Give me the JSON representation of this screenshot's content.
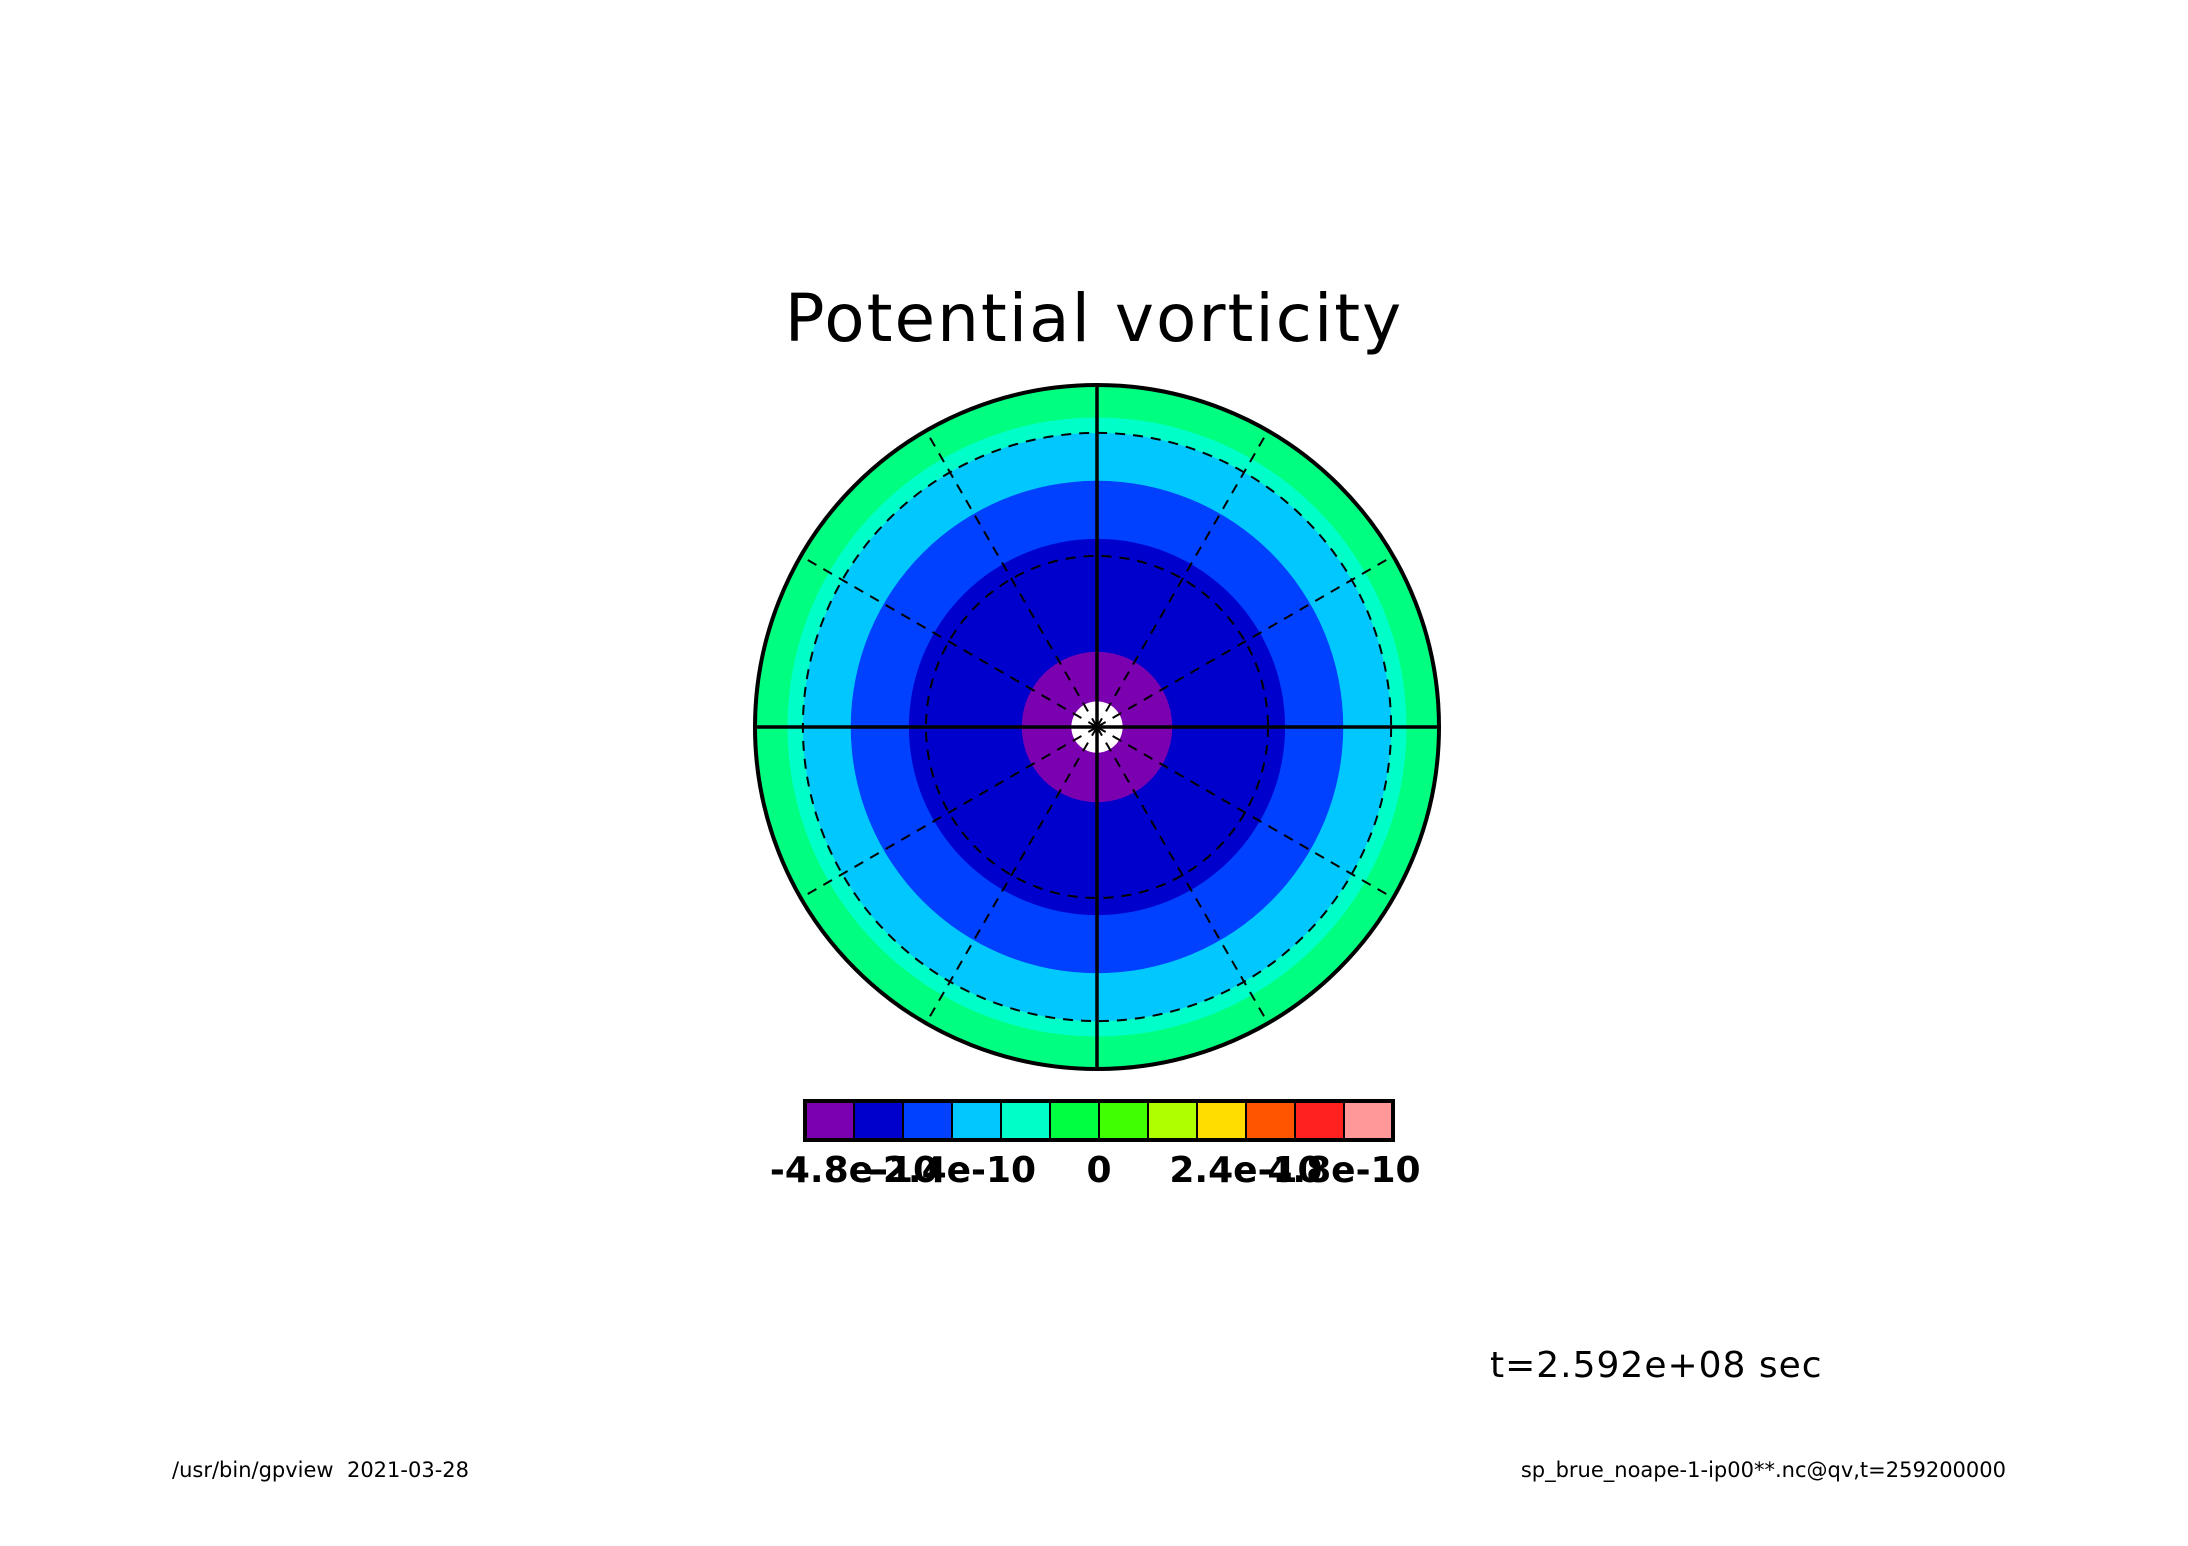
{
  "chart_data": {
    "type": "heatmap",
    "projection": "polar",
    "title": "Potential vorticity",
    "time_label": "t=2.592e+08 sec",
    "footer_left": "/usr/bin/gpview  2021-03-28",
    "footer_right": "sp_brue_noape-1-ip00**.nc@qv,t=259200000",
    "colorbar": {
      "colors": [
        "#7a00b0",
        "#0000cc",
        "#0040ff",
        "#00c8ff",
        "#00ffc8",
        "#00ff40",
        "#40ff00",
        "#b0ff00",
        "#ffdd00",
        "#ff5500",
        "#ff2020",
        "#ff9999"
      ],
      "tick_labels": [
        "-4.8e-10",
        "-2.4e-10",
        "0",
        "2.4e-10",
        "4.8e-10"
      ]
    },
    "rings": [
      {
        "color": "#00ff80",
        "radius_frac": 1.0
      },
      {
        "color": "#00ffc8",
        "radius_frac": 0.905
      },
      {
        "color": "#00c8ff",
        "radius_frac": 0.86
      },
      {
        "color": "#0040ff",
        "radius_frac": 0.72
      },
      {
        "color": "#0000cc",
        "radius_frac": 0.55
      },
      {
        "color": "#7a00b0",
        "radius_frac": 0.22
      },
      {
        "color": "#ffffff",
        "radius_frac": 0.075
      }
    ],
    "grid": true,
    "latitude_circles_frac": [
      0.5,
      0.86
    ],
    "meridian_step_deg": 30
  }
}
